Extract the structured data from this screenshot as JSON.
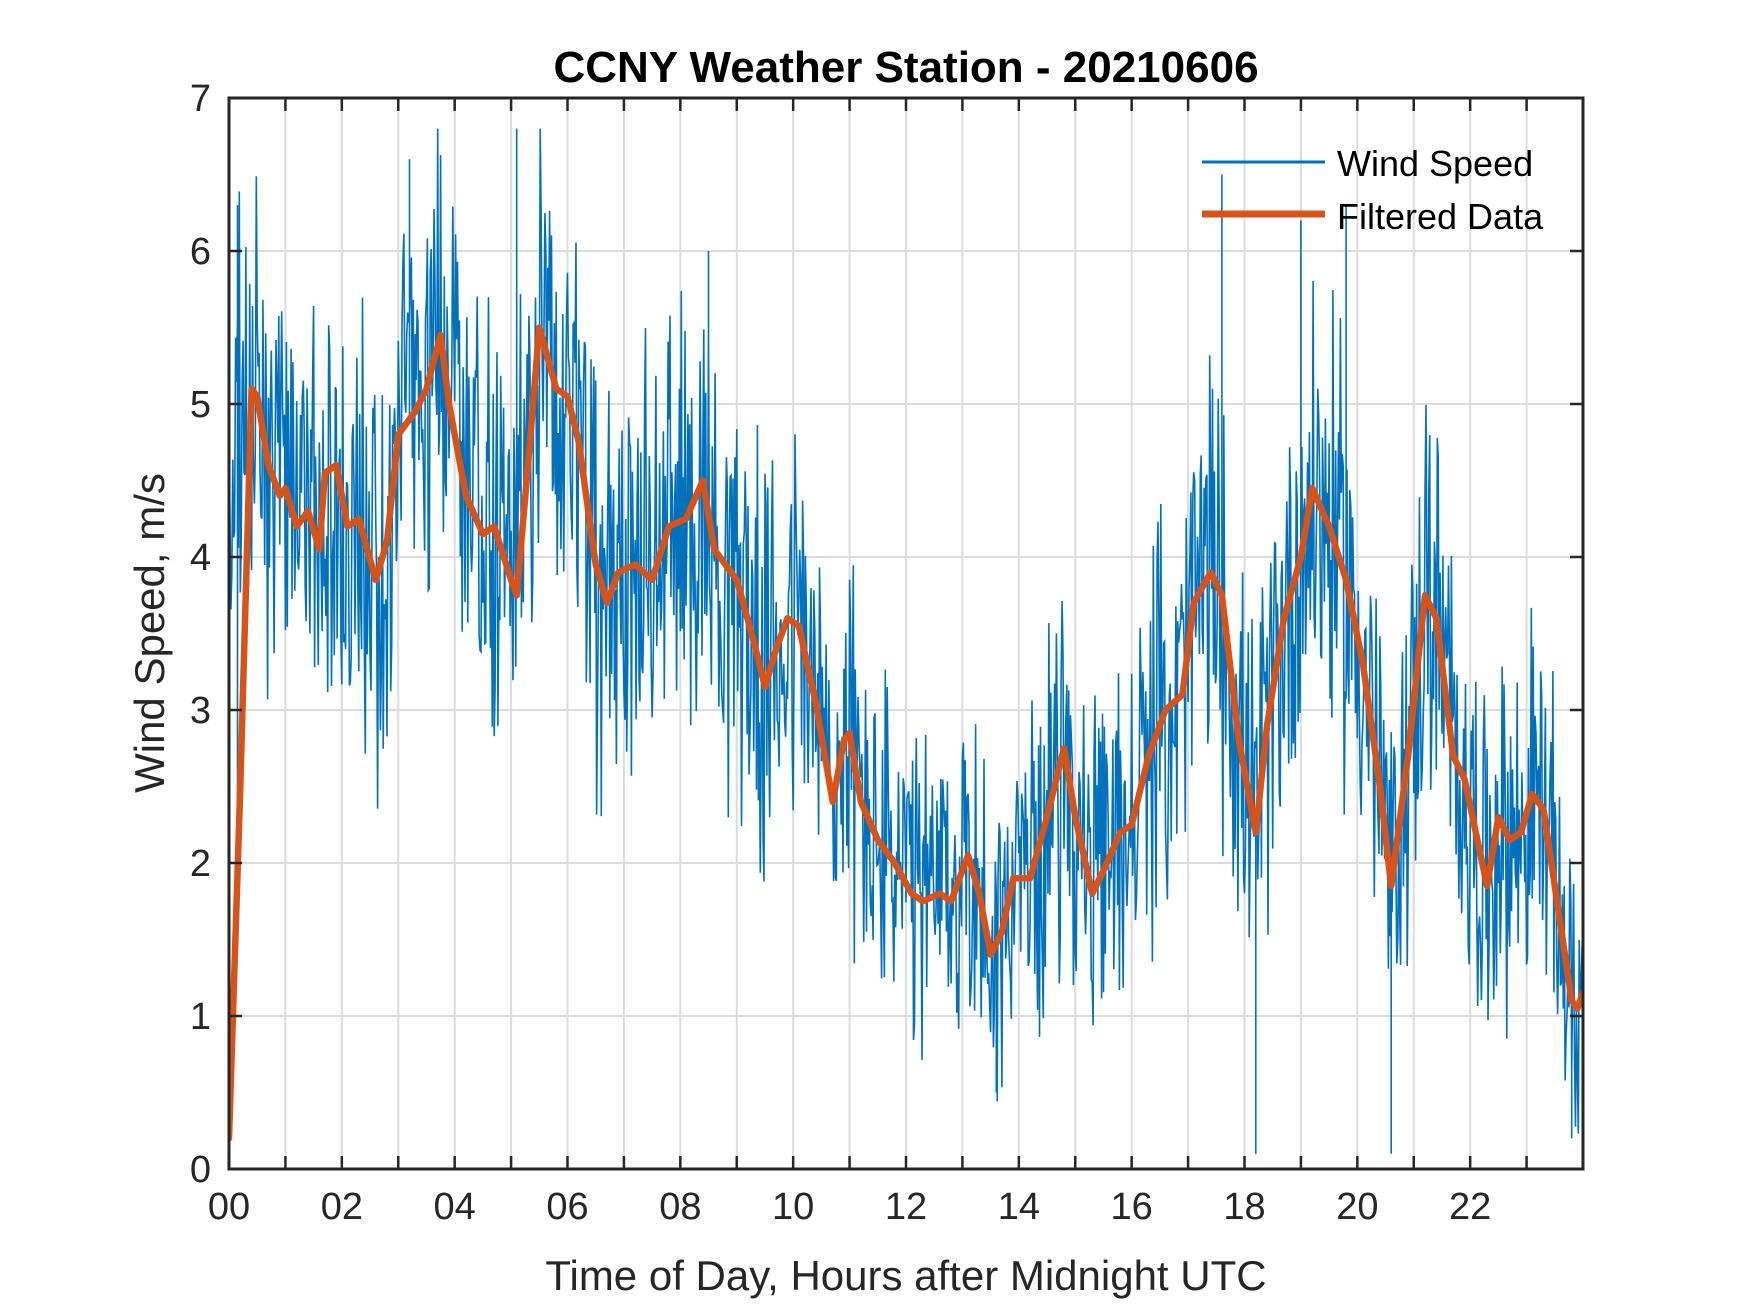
{
  "chart_data": {
    "type": "line",
    "title": "CCNY Weather Station - 20210606",
    "xlabel": "Time of Day, Hours after Midnight UTC",
    "ylabel": "Wind Speed, m/s",
    "xlim": [
      0,
      24
    ],
    "ylim": [
      0,
      7
    ],
    "grid": true,
    "legend_position": "top-right",
    "x_ticks": [
      0,
      2,
      4,
      6,
      8,
      10,
      12,
      14,
      16,
      18,
      20,
      22
    ],
    "x_tick_labels": [
      "00",
      "02",
      "04",
      "06",
      "08",
      "10",
      "12",
      "14",
      "16",
      "18",
      "20",
      "22"
    ],
    "x_minor_grid_step": 1,
    "y_ticks": [
      0,
      1,
      2,
      3,
      4,
      5,
      6,
      7
    ],
    "y_tick_labels": [
      "0",
      "1",
      "2",
      "3",
      "4",
      "5",
      "6",
      "7"
    ],
    "series": [
      {
        "name": "Wind Speed",
        "color": "#0072BD",
        "style": "thin",
        "noise_amplitude": 1.25,
        "description": "High-frequency raw wind speed samples (approx. 1-minute); values generated around the filtered trend with peaks up to 6.8 and lows near 0.1",
        "notable_peaks": [
          [
            5.1,
            6.8
          ],
          [
            3.2,
            6.6
          ],
          [
            0.15,
            6.3
          ],
          [
            17.6,
            6.5
          ],
          [
            19.0,
            6.2
          ],
          [
            19.8,
            6.3
          ],
          [
            8.5,
            6.0
          ]
        ],
        "notable_lows": [
          [
            18.2,
            0.1
          ],
          [
            20.6,
            0.1
          ],
          [
            13.6,
            0.5
          ],
          [
            23.8,
            0.2
          ]
        ]
      },
      {
        "name": "Filtered Data",
        "color": "#D95319",
        "style": "thick",
        "x": [
          0.0,
          0.2,
          0.4,
          0.5,
          0.7,
          0.9,
          1.0,
          1.2,
          1.4,
          1.6,
          1.7,
          1.9,
          2.1,
          2.3,
          2.6,
          2.8,
          3.0,
          3.3,
          3.5,
          3.75,
          3.9,
          4.2,
          4.5,
          4.7,
          5.0,
          5.1,
          5.3,
          5.5,
          5.8,
          6.0,
          6.2,
          6.5,
          6.7,
          6.9,
          7.2,
          7.5,
          7.8,
          8.1,
          8.4,
          8.6,
          9.0,
          9.3,
          9.5,
          9.7,
          9.9,
          10.1,
          10.4,
          10.7,
          10.9,
          11.0,
          11.2,
          11.5,
          11.8,
          12.1,
          12.3,
          12.6,
          12.8,
          13.1,
          13.3,
          13.5,
          13.7,
          13.9,
          14.2,
          14.5,
          14.8,
          15.0,
          15.3,
          15.5,
          15.8,
          16.0,
          16.3,
          16.6,
          16.9,
          17.1,
          17.4,
          17.6,
          17.9,
          18.2,
          18.4,
          18.7,
          19.0,
          19.2,
          19.5,
          19.8,
          20.1,
          20.4,
          20.6,
          20.9,
          21.2,
          21.4,
          21.7,
          21.9,
          22.1,
          22.3,
          22.5,
          22.7,
          22.9,
          23.1,
          23.3,
          23.6,
          23.8,
          23.9,
          24.0
        ],
        "y": [
          0.2,
          2.5,
          5.1,
          5.05,
          4.6,
          4.4,
          4.45,
          4.2,
          4.3,
          4.05,
          4.55,
          4.6,
          4.2,
          4.25,
          3.85,
          4.1,
          4.8,
          4.95,
          5.1,
          5.45,
          5.0,
          4.4,
          4.15,
          4.2,
          3.85,
          3.75,
          4.6,
          5.5,
          5.1,
          5.05,
          4.75,
          3.95,
          3.7,
          3.9,
          3.95,
          3.85,
          4.2,
          4.25,
          4.5,
          4.05,
          3.85,
          3.45,
          3.15,
          3.4,
          3.6,
          3.55,
          3.05,
          2.4,
          2.8,
          2.85,
          2.4,
          2.15,
          2.0,
          1.8,
          1.75,
          1.8,
          1.75,
          2.05,
          1.8,
          1.4,
          1.55,
          1.9,
          1.9,
          2.3,
          2.75,
          2.3,
          1.8,
          1.95,
          2.2,
          2.25,
          2.7,
          3.0,
          3.1,
          3.7,
          3.9,
          3.75,
          2.8,
          2.2,
          2.9,
          3.6,
          4.0,
          4.45,
          4.2,
          3.85,
          3.3,
          2.5,
          1.85,
          2.7,
          3.75,
          3.6,
          2.7,
          2.55,
          2.2,
          1.85,
          2.3,
          2.15,
          2.2,
          2.45,
          2.35,
          1.6,
          1.1,
          1.05,
          1.15
        ]
      }
    ]
  }
}
